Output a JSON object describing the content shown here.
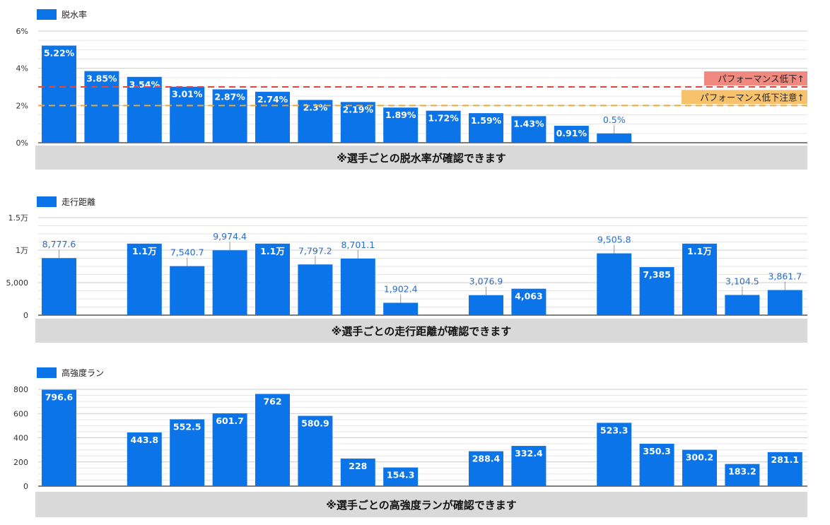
{
  "colors": {
    "bar": "#0a74e8",
    "grid": "#cccccc",
    "band": "#d9d9d9",
    "line_red": "#e0483d",
    "line_orange": "#f0a830",
    "tag_red_bg": "#f08a80",
    "tag_orange_bg": "#f7c26b",
    "label_outside": "#2a6cc4"
  },
  "chart_data": [
    {
      "type": "bar",
      "legend": "脱水率",
      "legend_position": "top-left",
      "values": [
        5.22,
        3.85,
        3.54,
        3.01,
        2.87,
        2.74,
        2.3,
        2.19,
        1.89,
        1.72,
        1.59,
        1.43,
        0.91,
        0.5,
        null,
        null,
        null,
        null
      ],
      "labels": [
        "5.22%",
        "3.85%",
        "3.54%",
        "3.01%",
        "2.87%",
        "2.74%",
        "2.3%",
        "2.19%",
        "1.89%",
        "1.72%",
        "1.59%",
        "1.43%",
        "0.91%",
        "0.5%",
        "",
        "",
        "",
        ""
      ],
      "ylim": [
        0,
        6
      ],
      "yticks": [
        0,
        2,
        4,
        6
      ],
      "yticklabels": [
        "0%",
        "2%",
        "4%",
        "6%"
      ],
      "grid": true,
      "reference_lines": [
        {
          "value": 3,
          "color": "line_red",
          "label": "パフォーマンス低下↑"
        },
        {
          "value": 2,
          "color": "line_orange",
          "label": "パフォーマンス低下注意↑"
        }
      ],
      "caption": "※選手ごとの脱水率が確認できます"
    },
    {
      "type": "bar",
      "legend": "走行距離",
      "legend_position": "top-left",
      "values": [
        8777.6,
        null,
        11000,
        7540.7,
        9974.4,
        11000,
        7797.2,
        8701.1,
        1902.4,
        null,
        3076.9,
        4063,
        null,
        9505.8,
        7385,
        11000,
        3104.5,
        3861.7
      ],
      "labels": [
        "8,777.6",
        "",
        "1.1万",
        "7,540.7",
        "9,974.4",
        "1.1万",
        "7,797.2",
        "8,701.1",
        "1,902.4",
        "",
        "3,076.9",
        "4,063",
        "",
        "9,505.8",
        "7,385",
        "1.1万",
        "3,104.5",
        "3,861.7"
      ],
      "ylim": [
        0,
        15000
      ],
      "yticks": [
        0,
        5000,
        10000,
        15000
      ],
      "yticklabels": [
        "0",
        "5,000",
        "1万",
        "1.5万"
      ],
      "grid": true,
      "caption": "※選手ごとの走行距離が確認できます"
    },
    {
      "type": "bar",
      "legend": "高強度ラン",
      "legend_position": "top-left",
      "values": [
        796.6,
        null,
        443.8,
        552.5,
        601.7,
        762,
        580.9,
        228,
        154.3,
        null,
        288.4,
        332.4,
        null,
        523.3,
        350.3,
        300.2,
        183.2,
        281.1
      ],
      "labels": [
        "796.6",
        "",
        "443.8",
        "552.5",
        "601.7",
        "762",
        "580.9",
        "228",
        "154.3",
        "",
        "288.4",
        "332.4",
        "",
        "523.3",
        "350.3",
        "300.2",
        "183.2",
        "281.1"
      ],
      "ylim": [
        0,
        800
      ],
      "yticks": [
        0,
        200,
        400,
        600,
        800
      ],
      "yticklabels": [
        "0",
        "200",
        "400",
        "600",
        "800"
      ],
      "grid": true,
      "caption": "※選手ごとの高強度ランが確認できます"
    }
  ]
}
